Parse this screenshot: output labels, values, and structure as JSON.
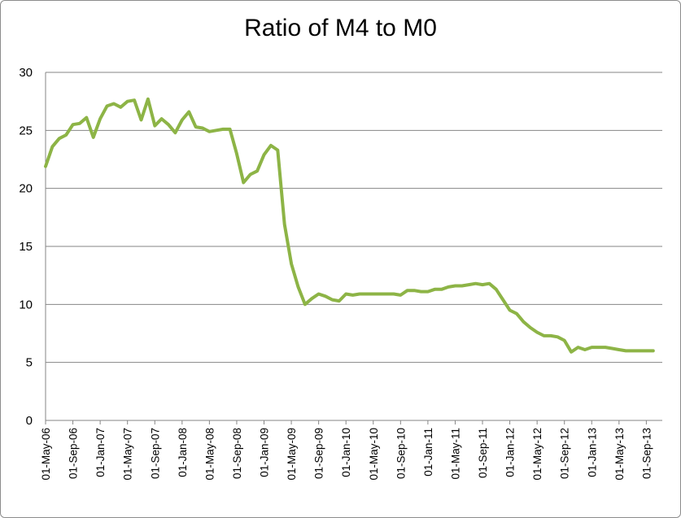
{
  "chart_data": {
    "type": "line",
    "title": "Ratio of M4 to M0",
    "xlabel": "",
    "ylabel": "",
    "ylim": [
      0,
      30
    ],
    "yticks": [
      0,
      5,
      10,
      15,
      20,
      25,
      30
    ],
    "grid": true,
    "legend": "none",
    "line_color": "#8db446",
    "x_tick_labels": [
      "01-May-06",
      "01-Sep-06",
      "01-Jan-07",
      "01-May-07",
      "01-Sep-07",
      "01-Jan-08",
      "01-May-08",
      "01-Sep-08",
      "01-Jan-09",
      "01-May-09",
      "01-Sep-09",
      "01-Jan-10",
      "01-May-10",
      "01-Sep-10",
      "01-Jan-11",
      "01-May-11",
      "01-Sep-11",
      "01-Jan-12",
      "01-May-12",
      "01-Sep-12",
      "01-Jan-13",
      "01-May-13",
      "01-Sep-13"
    ],
    "series": [
      {
        "x": [
          "2006-05",
          "2006-06",
          "2006-07",
          "2006-08",
          "2006-09",
          "2006-10",
          "2006-11",
          "2006-12",
          "2007-01",
          "2007-02",
          "2007-03",
          "2007-04",
          "2007-05",
          "2007-06",
          "2007-07",
          "2007-08",
          "2007-09",
          "2007-10",
          "2007-11",
          "2007-12",
          "2008-01",
          "2008-02",
          "2008-03",
          "2008-04",
          "2008-05",
          "2008-06",
          "2008-07",
          "2008-08",
          "2008-09",
          "2008-10",
          "2008-11",
          "2008-12",
          "2009-01",
          "2009-02",
          "2009-03",
          "2009-04",
          "2009-05",
          "2009-06",
          "2009-07",
          "2009-08",
          "2009-09",
          "2009-10",
          "2009-11",
          "2009-12",
          "2010-01",
          "2010-02",
          "2010-03",
          "2010-04",
          "2010-05",
          "2010-06",
          "2010-07",
          "2010-08",
          "2010-09",
          "2010-10",
          "2010-11",
          "2010-12",
          "2011-01",
          "2011-02",
          "2011-03",
          "2011-04",
          "2011-05",
          "2011-06",
          "2011-07",
          "2011-08",
          "2011-09",
          "2011-10",
          "2011-11",
          "2011-12",
          "2012-01",
          "2012-02",
          "2012-03",
          "2012-04",
          "2012-05",
          "2012-06",
          "2012-07",
          "2012-08",
          "2012-09",
          "2012-10",
          "2012-11",
          "2012-12",
          "2013-01",
          "2013-02",
          "2013-03",
          "2013-04",
          "2013-05",
          "2013-06",
          "2013-07",
          "2013-08",
          "2013-09",
          "2013-10"
        ],
        "values": [
          21.9,
          23.6,
          24.3,
          24.6,
          25.5,
          25.6,
          26.1,
          24.4,
          26.0,
          27.1,
          27.3,
          27.0,
          27.5,
          27.6,
          25.9,
          27.7,
          25.4,
          26.0,
          25.5,
          24.8,
          25.9,
          26.6,
          25.3,
          25.2,
          24.9,
          25.0,
          25.1,
          25.1,
          23.0,
          20.5,
          21.2,
          21.5,
          22.9,
          23.7,
          23.3,
          16.9,
          13.5,
          11.5,
          10.0,
          10.5,
          10.9,
          10.7,
          10.4,
          10.3,
          10.9,
          10.8,
          10.9,
          10.9,
          10.9,
          10.9,
          10.9,
          10.9,
          10.8,
          11.2,
          11.2,
          11.1,
          11.1,
          11.3,
          11.3,
          11.5,
          11.6,
          11.6,
          11.7,
          11.8,
          11.7,
          11.8,
          11.3,
          10.4,
          9.5,
          9.2,
          8.5,
          8.0,
          7.6,
          7.3,
          7.3,
          7.2,
          6.9,
          5.9,
          6.3,
          6.1,
          6.3,
          6.3,
          6.3,
          6.2,
          6.1,
          6.0,
          6.0,
          6.0,
          6.0,
          6.0
        ]
      }
    ]
  }
}
